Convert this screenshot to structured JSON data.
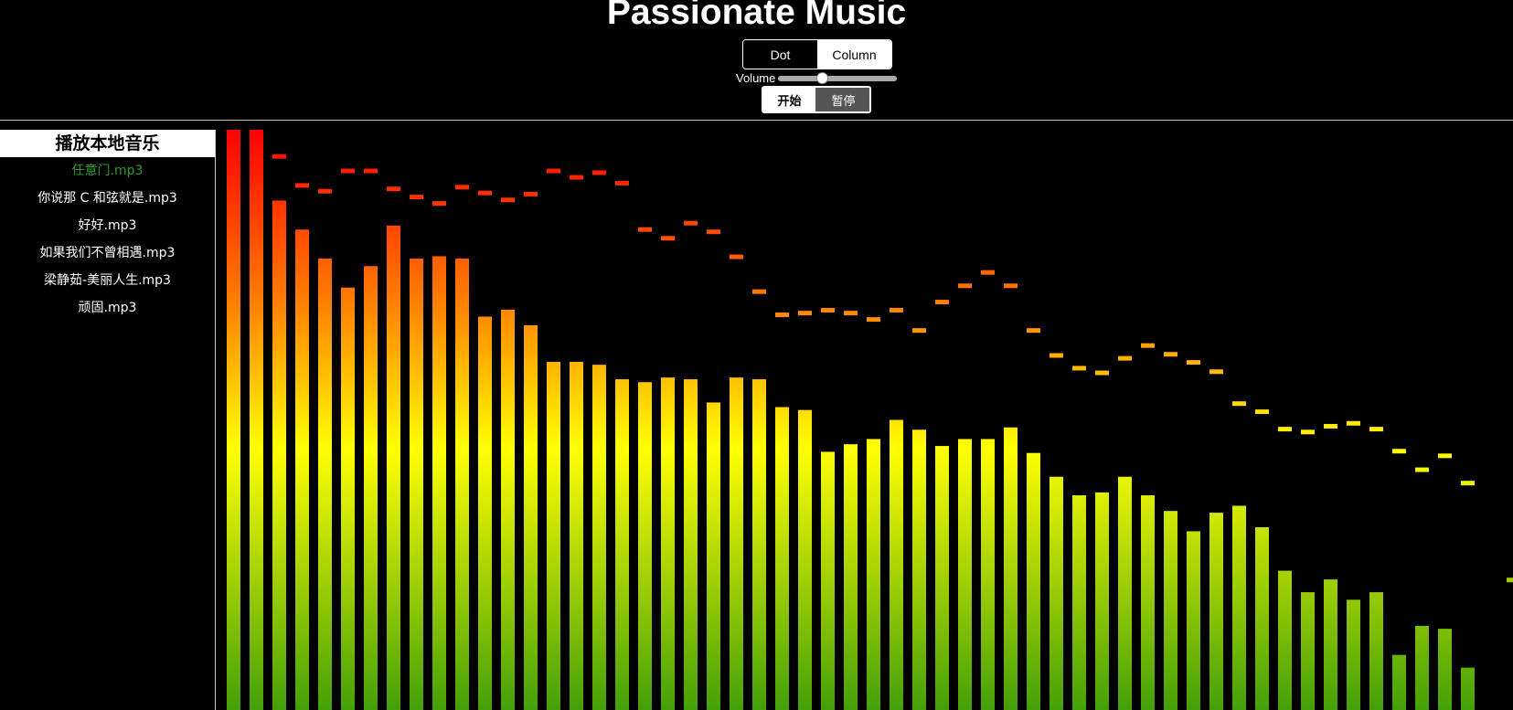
{
  "app": {
    "title": "Passionate Music"
  },
  "mode_toggle": {
    "options": [
      "Dot",
      "Column"
    ],
    "selected": "Dot"
  },
  "volume": {
    "label": "Volume",
    "level": 0.37
  },
  "playback": {
    "start_label": "开始",
    "pause_label": "暂停"
  },
  "sidebar": {
    "header": "播放本地音乐",
    "files": [
      {
        "name": "任意门.mp3",
        "playing": true
      },
      {
        "name": "你说那 C 和弦就是.mp3",
        "playing": false
      },
      {
        "name": "好好.mp3",
        "playing": false
      },
      {
        "name": "如果我们不曾相遇.mp3",
        "playing": false
      },
      {
        "name": "梁静茹-美丽人生.mp3",
        "playing": false
      },
      {
        "name": "顽固.mp3",
        "playing": false
      }
    ]
  },
  "visualizer": {
    "colors": {
      "top": "#ff0000",
      "upper": "#ff7700",
      "middle": "#ffff00",
      "bottom": "#44a008"
    },
    "bars": [
      1.0,
      1.0,
      0.878,
      0.828,
      0.778,
      0.728,
      0.765,
      0.835,
      0.778,
      0.782,
      0.778,
      0.678,
      0.69,
      0.663,
      0.6,
      0.6,
      0.595,
      0.57,
      0.565,
      0.573,
      0.57,
      0.53,
      0.573,
      0.57,
      0.522,
      0.517,
      0.445,
      0.458,
      0.467,
      0.5,
      0.483,
      0.455,
      0.467,
      0.467,
      0.487,
      0.443,
      0.402,
      0.37,
      0.375,
      0.402,
      0.37,
      0.343,
      0.308,
      0.34,
      0.352,
      0.315,
      0.24,
      0.203,
      0.225,
      0.19,
      0.203,
      0.095,
      0.145,
      0.14,
      0.073,
      0,
      0
    ],
    "peaks": [
      1.0,
      1.0,
      0.958,
      0.908,
      0.898,
      0.933,
      0.933,
      0.902,
      0.888,
      0.877,
      0.905,
      0.895,
      0.883,
      0.893,
      0.933,
      0.922,
      0.93,
      0.912,
      0.832,
      0.817,
      0.843,
      0.828,
      0.785,
      0.725,
      0.685,
      0.688,
      0.693,
      0.688,
      0.677,
      0.693,
      0.658,
      0.707,
      0.735,
      0.758,
      0.735,
      0.658,
      0.615,
      0.593,
      0.585,
      0.61,
      0.632,
      0.617,
      0.603,
      0.587,
      0.532,
      0.518,
      0.488,
      0.483,
      0.493,
      0.498,
      0.488,
      0.45,
      0.418,
      0.442,
      0.395,
      0,
      0.228
    ]
  }
}
